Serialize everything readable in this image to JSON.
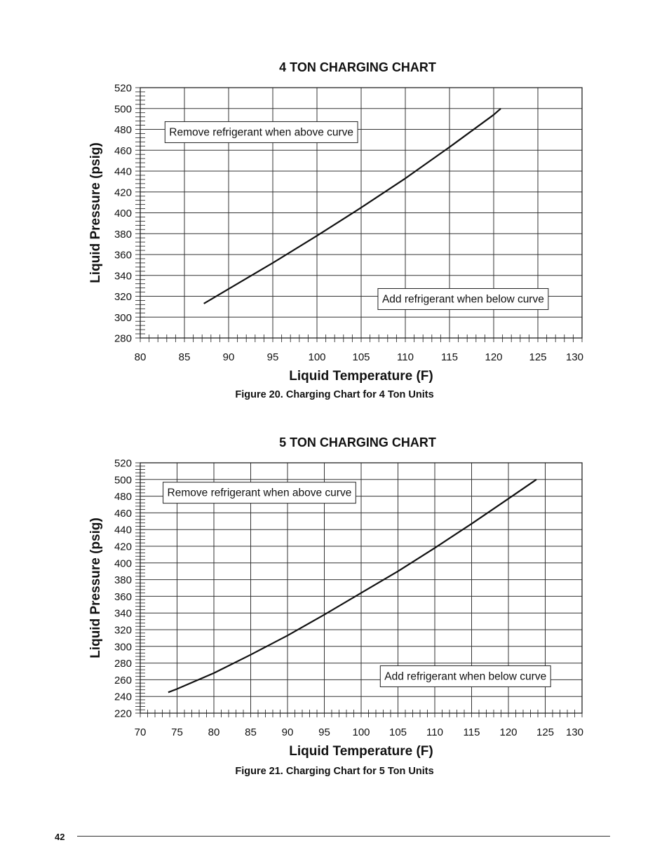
{
  "page": {
    "number": "42"
  },
  "chart_data": [
    {
      "type": "line",
      "title": "4 TON CHARGING CHART",
      "caption": "Figure 20. Charging Chart for 4 Ton Units",
      "xlabel": "Liquid Temperature (F)",
      "ylabel": "Liquid Pressure (psig)",
      "xlim": [
        80,
        130
      ],
      "ylim": [
        280,
        520
      ],
      "xticks": [
        80,
        85,
        90,
        95,
        100,
        105,
        110,
        115,
        120,
        125,
        130
      ],
      "yticks": [
        280,
        300,
        320,
        340,
        360,
        380,
        400,
        420,
        440,
        460,
        480,
        500,
        520
      ],
      "grid": true,
      "annotations": [
        {
          "text": "Remove refrigerant when above curve",
          "anchor_x": 82.8,
          "anchor_y": 478
        },
        {
          "text": "Add refrigerant when below curve",
          "anchor_x": 106.9,
          "anchor_y": 318
        }
      ],
      "series": [
        {
          "x": [
            87.2,
            90,
            95,
            100,
            105,
            110,
            115,
            120,
            120.8
          ],
          "y": [
            313,
            327,
            352,
            378,
            405,
            433,
            463,
            494,
            500
          ]
        }
      ]
    },
    {
      "type": "line",
      "title": "5 TON CHARGING CHART",
      "caption": "Figure 21. Charging Chart for 5 Ton Units",
      "xlabel": "Liquid Temperature (F)",
      "ylabel": "Liquid Pressure (psig)",
      "xlim": [
        70,
        130
      ],
      "ylim": [
        220,
        520
      ],
      "xticks": [
        70,
        75,
        80,
        85,
        90,
        95,
        100,
        105,
        110,
        115,
        120,
        125,
        130
      ],
      "yticks": [
        220,
        240,
        260,
        280,
        300,
        320,
        340,
        360,
        380,
        400,
        420,
        440,
        460,
        480,
        500,
        520
      ],
      "grid": true,
      "annotations": [
        {
          "text": "Remove refrigerant when above curve",
          "anchor_x": 73.1,
          "anchor_y": 485
        },
        {
          "text": "Add refrigerant when below curve",
          "anchor_x": 102.6,
          "anchor_y": 265
        }
      ],
      "series": [
        {
          "x": [
            73.8,
            75,
            80,
            85,
            90,
            95,
            100,
            105,
            110,
            115,
            120,
            123.8
          ],
          "y": [
            245,
            249,
            268,
            290,
            313,
            338,
            364,
            390,
            418,
            447,
            477,
            500
          ]
        }
      ]
    }
  ]
}
